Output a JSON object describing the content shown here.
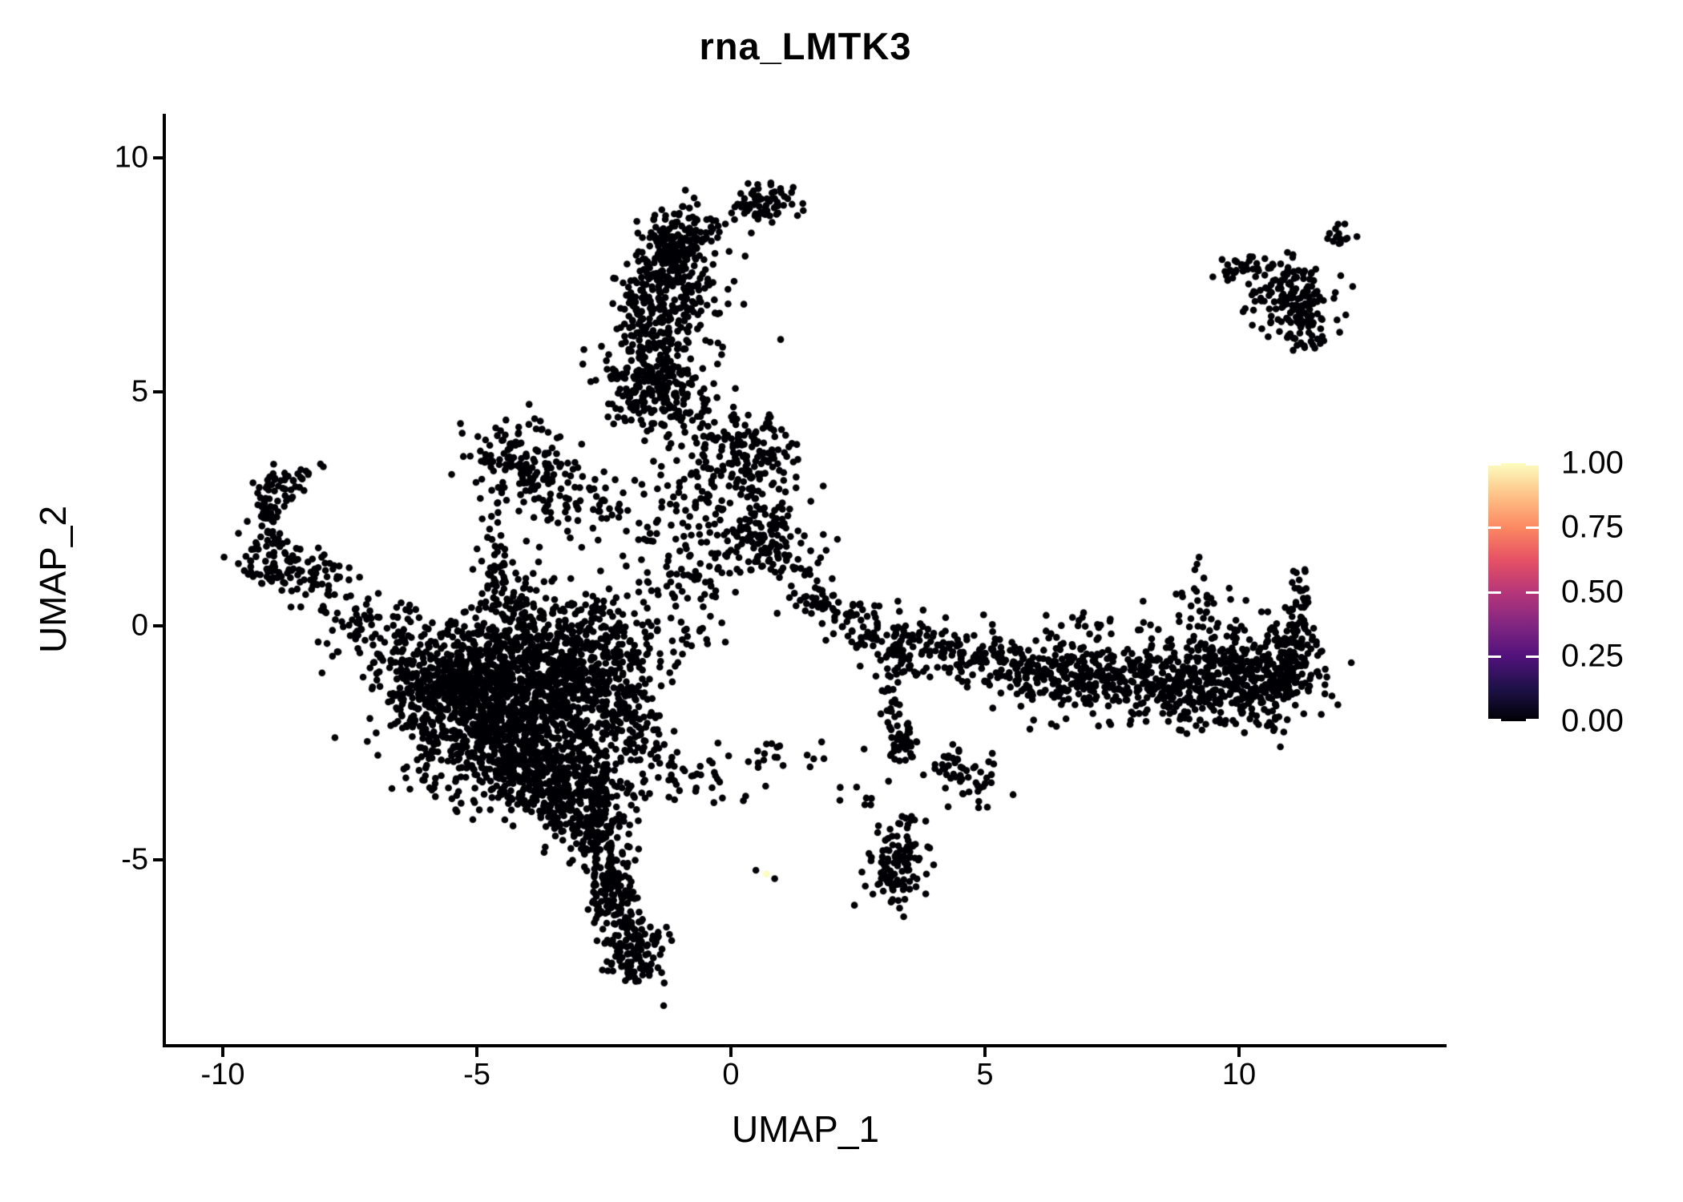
{
  "title": "rna_LMTK3",
  "background_color": "#ffffff",
  "axis_color": "#000000",
  "chart_data": {
    "type": "scatter",
    "title": "rna_LMTK3",
    "xlabel": "UMAP_1",
    "ylabel": "UMAP_2",
    "xlim": [
      -11.15,
      14.08
    ],
    "ylim": [
      -8.97,
      10.94
    ],
    "x_ticks": [
      -10,
      -5,
      0,
      5,
      10
    ],
    "x_tick_labels": [
      "-10",
      "-5",
      "0",
      "5",
      "10"
    ],
    "y_ticks": [
      10,
      5,
      0,
      -5
    ],
    "y_tick_labels": [
      "10",
      "5",
      "0",
      "-5"
    ],
    "grid": false,
    "legend_position": "right",
    "point_radius_px": 4.3,
    "point_color": "#000004",
    "seed": 42,
    "clusters": [
      {
        "name": "top-blob",
        "n": 70,
        "x": 0.62,
        "y": 9.05,
        "sx": 0.33,
        "sy": 0.2,
        "rot": 0
      },
      {
        "name": "arm-head",
        "n": 160,
        "x": -1.02,
        "y": 8.25,
        "sx": 0.42,
        "sy": 0.33,
        "rot": 20
      },
      {
        "name": "arm-upper",
        "n": 120,
        "x": -1.35,
        "y": 7.3,
        "sx": 0.45,
        "sy": 0.45,
        "rot": 0
      },
      {
        "name": "arm-mid",
        "n": 150,
        "x": -1.6,
        "y": 6.3,
        "sx": 0.4,
        "sy": 0.55,
        "rot": 0
      },
      {
        "name": "arm-low",
        "n": 160,
        "x": -1.65,
        "y": 5.15,
        "sx": 0.5,
        "sy": 0.38,
        "rot": 0
      },
      {
        "name": "arm-right-sparse",
        "n": 45,
        "x": -0.55,
        "y": 6.9,
        "sx": 0.45,
        "sy": 0.9,
        "rot": 0
      },
      {
        "name": "fan-base",
        "n": 90,
        "x": -0.95,
        "y": 4.5,
        "sx": 0.6,
        "sy": 0.45,
        "rot": -25
      },
      {
        "name": "fan-right-blob",
        "n": 100,
        "x": 0.45,
        "y": 3.75,
        "sx": 0.42,
        "sy": 0.42,
        "rot": 0
      },
      {
        "name": "central-right-blob",
        "n": 150,
        "x": 0.68,
        "y": 1.85,
        "sx": 0.52,
        "sy": 0.48,
        "rot": -15
      },
      {
        "name": "central-sparse",
        "n": 80,
        "x": -0.25,
        "y": 2.9,
        "sx": 0.7,
        "sy": 0.6,
        "rot": 0
      },
      {
        "name": "central-column",
        "n": 90,
        "x": -0.9,
        "y": 1.1,
        "sx": 0.55,
        "sy": 0.85,
        "rot": 0
      },
      {
        "name": "mid-left-sparse",
        "n": 60,
        "x": -2.3,
        "y": 2.4,
        "sx": 0.9,
        "sy": 0.8,
        "rot": 0
      },
      {
        "name": "triangle-main",
        "n": 120,
        "x": -4.15,
        "y": 3.6,
        "sx": 0.5,
        "sy": 0.45,
        "rot": -30
      },
      {
        "name": "triangle-arm",
        "n": 55,
        "x": -3.4,
        "y": 2.85,
        "sx": 0.5,
        "sy": 0.3,
        "rot": -20
      },
      {
        "name": "triangle-strand",
        "n": 30,
        "x": -4.62,
        "y": 1.65,
        "sx": 0.1,
        "sy": 0.75,
        "rot": 0
      },
      {
        "name": "triangle-foot",
        "n": 60,
        "x": -4.3,
        "y": 0.7,
        "sx": 0.45,
        "sy": 0.45,
        "rot": 0
      },
      {
        "name": "hook-top",
        "n": 40,
        "x": -8.75,
        "y": 3.05,
        "sx": 0.33,
        "sy": 0.18,
        "rot": 10
      },
      {
        "name": "hook-side",
        "n": 40,
        "x": -9.1,
        "y": 2.4,
        "sx": 0.14,
        "sy": 0.38,
        "rot": 0
      },
      {
        "name": "hook-clump",
        "n": 75,
        "x": -9.0,
        "y": 1.4,
        "sx": 0.38,
        "sy": 0.28,
        "rot": 0
      },
      {
        "name": "hook-string",
        "n": 55,
        "x": -8.1,
        "y": 0.95,
        "sx": 0.5,
        "sy": 0.3,
        "rot": -20
      },
      {
        "name": "hook-inflow",
        "n": 75,
        "x": -6.9,
        "y": -0.2,
        "sx": 0.55,
        "sy": 0.45,
        "rot": -30
      },
      {
        "name": "mass-core-1",
        "n": 480,
        "x": -4.8,
        "y": -1.0,
        "sx": 1.0,
        "sy": 0.7,
        "rot": 0
      },
      {
        "name": "mass-core-2",
        "n": 520,
        "x": -4.5,
        "y": -2.1,
        "sx": 1.05,
        "sy": 0.7,
        "rot": 0
      },
      {
        "name": "mass-right",
        "n": 330,
        "x": -3.6,
        "y": -1.1,
        "sx": 0.8,
        "sy": 0.6,
        "rot": 0
      },
      {
        "name": "mass-left",
        "n": 240,
        "x": -5.6,
        "y": -1.5,
        "sx": 0.6,
        "sy": 0.6,
        "rot": 0
      },
      {
        "name": "mass-lower",
        "n": 330,
        "x": -3.9,
        "y": -2.9,
        "sx": 0.8,
        "sy": 0.55,
        "rot": -10
      },
      {
        "name": "mass-taper-1",
        "n": 210,
        "x": -3.1,
        "y": -3.7,
        "sx": 0.55,
        "sy": 0.5,
        "rot": -20
      },
      {
        "name": "mass-taper-2",
        "n": 110,
        "x": -2.6,
        "y": -4.6,
        "sx": 0.33,
        "sy": 0.45,
        "rot": 0
      },
      {
        "name": "tail-blob",
        "n": 105,
        "x": -2.35,
        "y": -5.7,
        "sx": 0.25,
        "sy": 0.4,
        "rot": 0
      },
      {
        "name": "tail-bottom",
        "n": 125,
        "x": -1.9,
        "y": -6.9,
        "sx": 0.28,
        "sy": 0.42,
        "rot": 0
      },
      {
        "name": "mass-top-edge",
        "n": 120,
        "x": -3.0,
        "y": -0.05,
        "sx": 1.1,
        "sy": 0.35,
        "rot": 0
      },
      {
        "name": "mass-right-edge",
        "n": 140,
        "x": -2.35,
        "y": -0.8,
        "sx": 0.5,
        "sy": 0.75,
        "rot": 0
      },
      {
        "name": "mass-right-strand",
        "n": 110,
        "x": -2.05,
        "y": -2.2,
        "sx": 0.45,
        "sy": 0.75,
        "rot": 0
      },
      {
        "name": "bottom-sparse-arc",
        "n": 40,
        "x": -0.95,
        "y": -3.3,
        "sx": 0.65,
        "sy": 0.4,
        "rot": -15
      },
      {
        "name": "bottom-sparse-row",
        "n": 22,
        "x": 0.9,
        "y": -2.7,
        "sx": 0.7,
        "sy": 0.18,
        "rot": 0
      },
      {
        "name": "bottom-pair",
        "n": 7,
        "x": 2.5,
        "y": -3.75,
        "sx": 0.25,
        "sy": 0.12,
        "rot": 0
      },
      {
        "name": "wing-inflow",
        "n": 60,
        "x": 1.95,
        "y": 0.45,
        "sx": 0.55,
        "sy": 0.3,
        "rot": -25
      },
      {
        "name": "wing-start",
        "n": 90,
        "x": 3.1,
        "y": -0.25,
        "sx": 0.6,
        "sy": 0.33,
        "rot": -10
      },
      {
        "name": "drop-strand",
        "n": 30,
        "x": 3.2,
        "y": -1.5,
        "sx": 0.16,
        "sy": 0.6,
        "rot": 0
      },
      {
        "name": "drop-segment",
        "n": 40,
        "x": 3.42,
        "y": -2.45,
        "sx": 0.16,
        "sy": 0.25,
        "rot": 0
      },
      {
        "name": "drop-diagonal",
        "n": 55,
        "x": 4.55,
        "y": -3.1,
        "sx": 0.4,
        "sy": 0.28,
        "rot": -30
      },
      {
        "name": "drop-bottom-strand",
        "n": 120,
        "x": 3.3,
        "y": -5.1,
        "sx": 0.28,
        "sy": 0.55,
        "rot": -10
      },
      {
        "name": "wing-1",
        "n": 130,
        "x": 4.9,
        "y": -0.8,
        "sx": 0.85,
        "sy": 0.3,
        "rot": -8
      },
      {
        "name": "wing-2",
        "n": 150,
        "x": 6.4,
        "y": -1.05,
        "sx": 0.8,
        "sy": 0.35,
        "rot": -5
      },
      {
        "name": "wing-3",
        "n": 210,
        "x": 7.9,
        "y": -1.2,
        "sx": 0.85,
        "sy": 0.42,
        "rot": -5
      },
      {
        "name": "wing-4",
        "n": 270,
        "x": 9.35,
        "y": -1.2,
        "sx": 0.7,
        "sy": 0.48,
        "rot": 0
      },
      {
        "name": "wing-tip",
        "n": 250,
        "x": 10.45,
        "y": -1.0,
        "sx": 0.55,
        "sy": 0.5,
        "rot": 0
      },
      {
        "name": "wing-tip-curl",
        "n": 70,
        "x": 11.05,
        "y": -0.4,
        "sx": 0.25,
        "sy": 0.4,
        "rot": 0
      },
      {
        "name": "wing-up-strand",
        "n": 25,
        "x": 11.2,
        "y": 0.55,
        "sx": 0.1,
        "sy": 0.35,
        "rot": 0
      },
      {
        "name": "wing-above-sparse",
        "n": 28,
        "x": 9.25,
        "y": 0.5,
        "sx": 0.3,
        "sy": 0.4,
        "rot": 0
      },
      {
        "name": "wing-above-row",
        "n": 35,
        "x": 6.5,
        "y": -0.1,
        "sx": 1.3,
        "sy": 0.22,
        "rot": 0
      },
      {
        "name": "topright-main",
        "n": 140,
        "x": 11.0,
        "y": 7.05,
        "sx": 0.45,
        "sy": 0.38,
        "rot": 0
      },
      {
        "name": "topright-left-string",
        "n": 28,
        "x": 10.05,
        "y": 7.65,
        "sx": 0.3,
        "sy": 0.1,
        "rot": 10
      },
      {
        "name": "topright-mini-string",
        "n": 14,
        "x": 12.0,
        "y": 8.3,
        "sx": 0.15,
        "sy": 0.1,
        "rot": 30
      },
      {
        "name": "topright-tip",
        "n": 45,
        "x": 11.3,
        "y": 6.35,
        "sx": 0.25,
        "sy": 0.28,
        "rot": 0
      }
    ],
    "highlight_points": [
      {
        "x": 0.49,
        "y": -5.22,
        "value": 0.0,
        "color": "#000004"
      },
      {
        "x": 0.7,
        "y": -5.3,
        "value": 1.0,
        "color": "#FCFDBF"
      },
      {
        "x": 0.86,
        "y": -5.4,
        "value": 0.0,
        "color": "#000004"
      }
    ],
    "legend": {
      "tick_labels": [
        "1.00",
        "0.75",
        "0.50",
        "0.25",
        "0.00"
      ],
      "tick_values": [
        1.0,
        0.75,
        0.5,
        0.25,
        0.0
      ],
      "colormap": "magma",
      "gradient_stops": [
        "#000004",
        "#1d1147",
        "#51127c",
        "#822681",
        "#b63679",
        "#e65164",
        "#fb8861",
        "#fec287",
        "#fcfdbf"
      ],
      "tick_mark_color": "#ffffff"
    }
  }
}
